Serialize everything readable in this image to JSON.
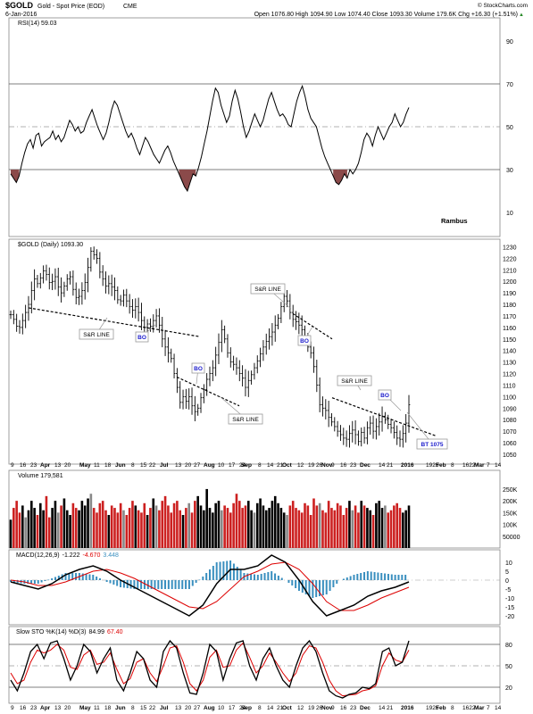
{
  "header": {
    "symbol": "$GOLD",
    "description": "Gold - Spot Price (EOD)",
    "exchange": "CME",
    "date": "6-Jan-2016",
    "watermark": "© StockCharts.com",
    "ohlc": "Open 1076.80   High 1094.90   Low 1074.40   Close 1093.30   Volume 179.6K   Chg +16.30 (+1.51%)",
    "up_arrow": "▲"
  },
  "colors": {
    "price_bar": "#000000",
    "volume_up": "#000000",
    "volume_down": "#cc2020",
    "volume_flat": "#888888",
    "rsi_fill": "#8b4a4a",
    "macd_hist": "#3a8fbf",
    "signal_line": "#dd0000",
    "annotation_blue": "#1a1acc"
  },
  "chart_data": [
    {
      "type": "line",
      "panel": "rsi",
      "title": "RSI(14) 59.03",
      "ylim": [
        0,
        100
      ],
      "yticks": [
        10,
        30,
        50,
        70,
        90
      ],
      "reference_lines": [
        30,
        50,
        70
      ],
      "values": [
        28,
        26,
        24,
        27,
        33,
        38,
        42,
        44,
        40,
        46,
        47,
        41,
        43,
        44,
        45,
        48,
        44,
        46,
        43,
        45,
        49,
        53,
        51,
        48,
        50,
        47,
        48,
        52,
        55,
        58,
        54,
        50,
        47,
        44,
        47,
        52,
        58,
        62,
        60,
        56,
        52,
        48,
        45,
        47,
        44,
        40,
        37,
        41,
        45,
        43,
        40,
        37,
        35,
        33,
        36,
        39,
        41,
        38,
        34,
        31,
        28,
        25,
        22,
        20,
        24,
        28,
        27,
        31,
        36,
        42,
        48,
        55,
        62,
        68,
        66,
        60,
        56,
        52,
        55,
        62,
        67,
        63,
        57,
        50,
        45,
        48,
        52,
        56,
        53,
        50,
        53,
        58,
        63,
        66,
        62,
        58,
        55,
        56,
        54,
        51,
        50,
        56,
        62,
        66,
        69,
        64,
        58,
        54,
        52,
        50,
        45,
        40,
        36,
        33,
        30,
        27,
        24,
        23,
        25,
        28,
        26,
        30,
        28,
        30,
        33,
        38,
        44,
        47,
        45,
        41,
        46,
        50,
        47,
        44,
        47,
        50,
        52,
        56,
        53,
        50,
        52,
        56,
        59
      ],
      "annotations": [
        "Rambus"
      ]
    },
    {
      "type": "ohlc",
      "panel": "price",
      "title": "$GOLD (Daily) 1093.30",
      "ylim": [
        1043,
        1235
      ],
      "yticks": [
        1050,
        1060,
        1070,
        1080,
        1090,
        1100,
        1110,
        1120,
        1130,
        1140,
        1150,
        1160,
        1170,
        1180,
        1190,
        1200,
        1210,
        1220,
        1230
      ],
      "close": [
        1171,
        1167,
        1161,
        1160,
        1166,
        1173,
        1180,
        1192,
        1202,
        1198,
        1203,
        1209,
        1206,
        1199,
        1200,
        1204,
        1195,
        1190,
        1196,
        1202,
        1204,
        1193,
        1186,
        1187,
        1192,
        1199,
        1212,
        1226,
        1223,
        1220,
        1208,
        1202,
        1196,
        1198,
        1195,
        1192,
        1184,
        1183,
        1188,
        1183,
        1178,
        1175,
        1178,
        1173,
        1166,
        1160,
        1163,
        1161,
        1166,
        1170,
        1162,
        1150,
        1143,
        1138,
        1133,
        1120,
        1108,
        1095,
        1100,
        1096,
        1100,
        1092,
        1087,
        1090,
        1099,
        1106,
        1115,
        1120,
        1125,
        1136,
        1147,
        1158,
        1150,
        1138,
        1130,
        1128,
        1125,
        1120,
        1116,
        1108,
        1114,
        1119,
        1125,
        1131,
        1137,
        1143,
        1148,
        1152,
        1156,
        1162,
        1168,
        1178,
        1187,
        1183,
        1173,
        1167,
        1165,
        1162,
        1158,
        1151,
        1143,
        1138,
        1126,
        1110,
        1093,
        1090,
        1088,
        1082,
        1078,
        1074,
        1070,
        1067,
        1064,
        1063,
        1068,
        1071,
        1067,
        1061,
        1069,
        1064,
        1073,
        1077,
        1070,
        1074,
        1078,
        1083,
        1080,
        1076,
        1073,
        1069,
        1064,
        1063,
        1068,
        1077,
        1093
      ],
      "annotations": [
        "S&R LINE",
        "BO",
        "S&R LINE",
        "S&R LINE",
        "BO",
        "S&R LINE",
        "BO",
        "BT 1075"
      ]
    },
    {
      "type": "bar",
      "panel": "volume",
      "title": "Volume 179,581",
      "ylim": [
        0,
        280000
      ],
      "yticks": [
        50000,
        100000,
        150000,
        200000,
        250000
      ],
      "ytick_labels": [
        "50000",
        "100K",
        "150K",
        "200K",
        "250K"
      ],
      "values": [
        120,
        170,
        200,
        150,
        180,
        130,
        160,
        200,
        170,
        140,
        190,
        160,
        220,
        130,
        170,
        200,
        150,
        180,
        210,
        160,
        140,
        190,
        170,
        160,
        200,
        180,
        210,
        230,
        170,
        150,
        190,
        200,
        160,
        140,
        180,
        170,
        150,
        190,
        160,
        140,
        170,
        200,
        180,
        160,
        150,
        190,
        140,
        170,
        210,
        180,
        160,
        200,
        220,
        180,
        150,
        190,
        200,
        160,
        140,
        170,
        190,
        150,
        200,
        220,
        180,
        160,
        250,
        170,
        150,
        190,
        200,
        160,
        180,
        170,
        150,
        190,
        230,
        200,
        170,
        180,
        200,
        160,
        150,
        190,
        210,
        180,
        160,
        170,
        200,
        220,
        190,
        170,
        150,
        140,
        180,
        200,
        170,
        160,
        150,
        190,
        180,
        140,
        210,
        180,
        190,
        160,
        150,
        200,
        170,
        160,
        190,
        180,
        140,
        170,
        200,
        160,
        180,
        150,
        200,
        180,
        170,
        160,
        140,
        190,
        200,
        170,
        180,
        150,
        160,
        180,
        190,
        170,
        150,
        160,
        180
      ]
    },
    {
      "type": "line",
      "panel": "macd",
      "title": "MACD(12,26,9) -1.222, -4.670, 3.448",
      "series_labels": [
        "MACD(12,26,9)",
        "-1.222",
        "-4.670",
        "3.448"
      ],
      "ylim": [
        -24,
        14
      ],
      "yticks": [
        -20,
        -15,
        -10,
        -5,
        0,
        5,
        10
      ],
      "x_points": 25,
      "macd": [
        -1,
        -3,
        -5,
        -2,
        3,
        6,
        8,
        5,
        0,
        -4,
        -8,
        -12,
        -16,
        -20,
        -14,
        -2,
        6,
        6,
        8,
        14,
        10,
        0,
        -12,
        -20,
        -17,
        -14,
        -9,
        -6,
        -4,
        -1
      ],
      "signal": [
        0,
        -1,
        -3,
        -3,
        -1,
        2,
        5,
        6,
        4,
        1,
        -3,
        -7,
        -11,
        -15,
        -16,
        -12,
        -5,
        2,
        5,
        9,
        10,
        6,
        -2,
        -12,
        -17,
        -17,
        -14,
        -10,
        -7,
        -4
      ]
    },
    {
      "type": "line",
      "panel": "stochastic",
      "title": "Slow STO %K(14) %D(3) 84.99, 67.40",
      "series_labels": [
        "Slow STO %K(14) %D(3)",
        "84.99",
        "67.40"
      ],
      "ylim": [
        0,
        100
      ],
      "yticks": [
        20,
        50,
        80
      ],
      "reference_lines": [
        20,
        50,
        80
      ],
      "k": [
        30,
        15,
        40,
        70,
        80,
        60,
        82,
        85,
        60,
        30,
        50,
        80,
        70,
        40,
        60,
        75,
        30,
        15,
        40,
        70,
        60,
        30,
        20,
        70,
        85,
        75,
        40,
        12,
        10,
        40,
        80,
        70,
        30,
        60,
        82,
        85,
        50,
        30,
        60,
        75,
        50,
        30,
        20,
        50,
        75,
        85,
        70,
        40,
        15,
        8,
        5,
        10,
        12,
        20,
        18,
        25,
        70,
        75,
        50,
        55,
        85
      ],
      "d": [
        40,
        25,
        30,
        55,
        72,
        68,
        72,
        80,
        72,
        48,
        45,
        65,
        72,
        52,
        55,
        68,
        45,
        25,
        32,
        55,
        60,
        40,
        28,
        50,
        75,
        78,
        55,
        25,
        15,
        30,
        62,
        72,
        48,
        50,
        72,
        82,
        62,
        40,
        50,
        68,
        55,
        40,
        28,
        40,
        65,
        78,
        75,
        55,
        30,
        15,
        8,
        9,
        10,
        15,
        17,
        22,
        50,
        68,
        58,
        55,
        72
      ]
    }
  ],
  "x_axis_labels": [
    "9",
    "16",
    "23",
    "Apr",
    "13",
    "20",
    "May",
    "11",
    "18",
    "Jun",
    "8",
    "15",
    "22",
    "Jul",
    "13",
    "20",
    "27",
    "Aug",
    "10",
    "17",
    "24",
    "Sep",
    "8",
    "14",
    "21",
    "Oct",
    "12",
    "19",
    "26",
    "Nov",
    "9",
    "16",
    "23",
    "Dec",
    "14",
    "21",
    "2016",
    "1925",
    "Feb",
    "8",
    "1622",
    "Mar",
    "7",
    "14"
  ]
}
